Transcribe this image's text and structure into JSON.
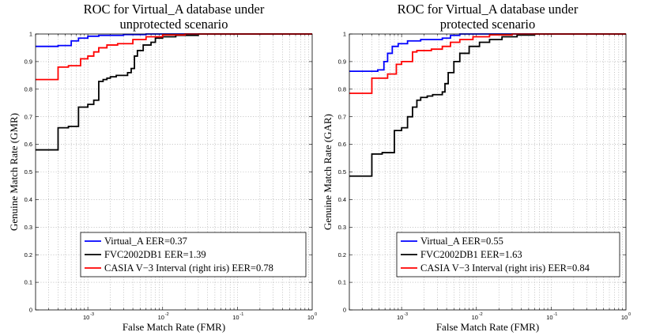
{
  "chart_data": [
    {
      "type": "line",
      "title": [
        "ROC for Virtual_A database under",
        "unprotected scenario"
      ],
      "xlabel": "False Match Rate (FMR)",
      "ylabel": "Genuine Match Rate (GMR)",
      "xscale": "log",
      "xlim": [
        0.0002,
        1
      ],
      "ylim": [
        0,
        1
      ],
      "grid": true,
      "legend_position": "lower-center",
      "xticks": [
        {
          "v": 0.001,
          "base": "10",
          "exp": "-3"
        },
        {
          "v": 0.01,
          "base": "10",
          "exp": "-2"
        },
        {
          "v": 0.1,
          "base": "10",
          "exp": "-1"
        },
        {
          "v": 1,
          "base": "10",
          "exp": "0"
        }
      ],
      "yticks": [
        {
          "v": 0,
          "label": "0"
        },
        {
          "v": 0.1,
          "label": "0.1"
        },
        {
          "v": 0.2,
          "label": "0.2"
        },
        {
          "v": 0.3,
          "label": "0.3"
        },
        {
          "v": 0.4,
          "label": "0.4"
        },
        {
          "v": 0.5,
          "label": "0.5"
        },
        {
          "v": 0.6,
          "label": "0.6"
        },
        {
          "v": 0.7,
          "label": "0.7"
        },
        {
          "v": 0.8,
          "label": "0.8"
        },
        {
          "v": 0.9,
          "label": "0.9"
        },
        {
          "v": 1,
          "label": "1"
        }
      ],
      "series": [
        {
          "name": "Virtual_A EER=0.37",
          "color": "#0000ff",
          "points": [
            [
              0.0002,
              0.955
            ],
            [
              0.0004,
              0.955
            ],
            [
              0.0004,
              0.958
            ],
            [
              0.0006,
              0.958
            ],
            [
              0.0006,
              0.975
            ],
            [
              0.00075,
              0.975
            ],
            [
              0.00075,
              0.985
            ],
            [
              0.001,
              0.985
            ],
            [
              0.001,
              0.992
            ],
            [
              0.0014,
              0.992
            ],
            [
              0.0014,
              0.995
            ],
            [
              0.003,
              0.995
            ],
            [
              0.003,
              0.998
            ],
            [
              0.006,
              0.998
            ],
            [
              0.006,
              1
            ],
            [
              1,
              1
            ]
          ]
        },
        {
          "name": "FVC2002DB1 EER=1.39",
          "color": "#000000",
          "points": [
            [
              0.0002,
              0.58
            ],
            [
              0.0004,
              0.58
            ],
            [
              0.0004,
              0.66
            ],
            [
              0.00055,
              0.66
            ],
            [
              0.00055,
              0.665
            ],
            [
              0.00075,
              0.665
            ],
            [
              0.00075,
              0.735
            ],
            [
              0.001,
              0.735
            ],
            [
              0.001,
              0.745
            ],
            [
              0.0012,
              0.745
            ],
            [
              0.0012,
              0.76
            ],
            [
              0.0014,
              0.76
            ],
            [
              0.0014,
              0.828
            ],
            [
              0.0016,
              0.828
            ],
            [
              0.0016,
              0.835
            ],
            [
              0.0018,
              0.835
            ],
            [
              0.0018,
              0.84
            ],
            [
              0.002,
              0.84
            ],
            [
              0.002,
              0.845
            ],
            [
              0.0024,
              0.845
            ],
            [
              0.0024,
              0.85
            ],
            [
              0.0034,
              0.85
            ],
            [
              0.0034,
              0.86
            ],
            [
              0.0038,
              0.86
            ],
            [
              0.0038,
              0.875
            ],
            [
              0.0042,
              0.875
            ],
            [
              0.0042,
              0.92
            ],
            [
              0.0046,
              0.92
            ],
            [
              0.0046,
              0.94
            ],
            [
              0.0055,
              0.94
            ],
            [
              0.0055,
              0.96
            ],
            [
              0.007,
              0.96
            ],
            [
              0.007,
              0.97
            ],
            [
              0.008,
              0.97
            ],
            [
              0.008,
              0.985
            ],
            [
              0.01,
              0.985
            ],
            [
              0.01,
              0.99
            ],
            [
              0.015,
              0.99
            ],
            [
              0.015,
              0.995
            ],
            [
              0.03,
              0.995
            ],
            [
              0.03,
              1
            ],
            [
              1,
              1
            ]
          ]
        },
        {
          "name": "CASIA V−3 Interval (right iris) EER=0.78",
          "color": "#ff0000",
          "points": [
            [
              0.0002,
              0.835
            ],
            [
              0.0004,
              0.835
            ],
            [
              0.0004,
              0.88
            ],
            [
              0.00055,
              0.88
            ],
            [
              0.00055,
              0.885
            ],
            [
              0.0008,
              0.885
            ],
            [
              0.0008,
              0.91
            ],
            [
              0.001,
              0.91
            ],
            [
              0.001,
              0.92
            ],
            [
              0.0012,
              0.92
            ],
            [
              0.0012,
              0.935
            ],
            [
              0.0014,
              0.935
            ],
            [
              0.0014,
              0.95
            ],
            [
              0.0018,
              0.95
            ],
            [
              0.0018,
              0.96
            ],
            [
              0.0025,
              0.96
            ],
            [
              0.0025,
              0.965
            ],
            [
              0.004,
              0.965
            ],
            [
              0.004,
              0.98
            ],
            [
              0.006,
              0.98
            ],
            [
              0.006,
              0.99
            ],
            [
              0.01,
              0.99
            ],
            [
              0.01,
              0.997
            ],
            [
              0.02,
              0.997
            ],
            [
              0.02,
              1
            ],
            [
              1,
              1
            ]
          ]
        }
      ]
    },
    {
      "type": "line",
      "title": [
        "ROC for Virtual_A database under",
        "protected scenario"
      ],
      "xlabel": "False Match Rate (FMR)",
      "ylabel": "Genuine Match Rate (GAR)",
      "xscale": "log",
      "xlim": [
        0.0002,
        1
      ],
      "ylim": [
        0,
        1
      ],
      "grid": true,
      "legend_position": "lower-center",
      "xticks": [
        {
          "v": 0.001,
          "base": "10",
          "exp": "-3"
        },
        {
          "v": 0.01,
          "base": "10",
          "exp": "-2"
        },
        {
          "v": 0.1,
          "base": "10",
          "exp": "-1"
        },
        {
          "v": 1,
          "base": "10",
          "exp": "0"
        }
      ],
      "yticks": [
        {
          "v": 0,
          "label": "0"
        },
        {
          "v": 0.1,
          "label": "0.1"
        },
        {
          "v": 0.2,
          "label": "0.2"
        },
        {
          "v": 0.3,
          "label": "0.3"
        },
        {
          "v": 0.4,
          "label": "0.4"
        },
        {
          "v": 0.5,
          "label": "0.5"
        },
        {
          "v": 0.6,
          "label": "0.6"
        },
        {
          "v": 0.7,
          "label": "0.7"
        },
        {
          "v": 0.8,
          "label": "0.8"
        },
        {
          "v": 0.9,
          "label": "0.9"
        },
        {
          "v": 1,
          "label": "1"
        }
      ],
      "series": [
        {
          "name": "Virtual_A EER=0.55",
          "color": "#0000ff",
          "points": [
            [
              0.0002,
              0.865
            ],
            [
              0.00048,
              0.865
            ],
            [
              0.00048,
              0.87
            ],
            [
              0.00058,
              0.87
            ],
            [
              0.00058,
              0.9
            ],
            [
              0.00065,
              0.9
            ],
            [
              0.00065,
              0.93
            ],
            [
              0.00075,
              0.93
            ],
            [
              0.00075,
              0.955
            ],
            [
              0.0009,
              0.955
            ],
            [
              0.0009,
              0.965
            ],
            [
              0.0012,
              0.965
            ],
            [
              0.0012,
              0.975
            ],
            [
              0.0018,
              0.975
            ],
            [
              0.0018,
              0.98
            ],
            [
              0.0035,
              0.98
            ],
            [
              0.0035,
              0.985
            ],
            [
              0.0045,
              0.985
            ],
            [
              0.0045,
              0.995
            ],
            [
              0.006,
              0.995
            ],
            [
              0.006,
              1
            ],
            [
              1,
              1
            ]
          ]
        },
        {
          "name": "FVC2002DB1 EER=1.63",
          "color": "#000000",
          "points": [
            [
              0.0002,
              0.485
            ],
            [
              0.0004,
              0.485
            ],
            [
              0.0004,
              0.565
            ],
            [
              0.00055,
              0.565
            ],
            [
              0.00055,
              0.57
            ],
            [
              0.0008,
              0.57
            ],
            [
              0.0008,
              0.65
            ],
            [
              0.001,
              0.65
            ],
            [
              0.001,
              0.66
            ],
            [
              0.0012,
              0.66
            ],
            [
              0.0012,
              0.7
            ],
            [
              0.0014,
              0.7
            ],
            [
              0.0014,
              0.735
            ],
            [
              0.0016,
              0.735
            ],
            [
              0.0016,
              0.76
            ],
            [
              0.0018,
              0.76
            ],
            [
              0.0018,
              0.77
            ],
            [
              0.0022,
              0.77
            ],
            [
              0.0022,
              0.775
            ],
            [
              0.0026,
              0.775
            ],
            [
              0.0026,
              0.78
            ],
            [
              0.0035,
              0.78
            ],
            [
              0.0035,
              0.79
            ],
            [
              0.0038,
              0.79
            ],
            [
              0.0038,
              0.82
            ],
            [
              0.0042,
              0.82
            ],
            [
              0.0042,
              0.86
            ],
            [
              0.005,
              0.86
            ],
            [
              0.005,
              0.9
            ],
            [
              0.006,
              0.9
            ],
            [
              0.006,
              0.93
            ],
            [
              0.008,
              0.93
            ],
            [
              0.008,
              0.955
            ],
            [
              0.011,
              0.955
            ],
            [
              0.011,
              0.97
            ],
            [
              0.015,
              0.97
            ],
            [
              0.015,
              0.98
            ],
            [
              0.022,
              0.98
            ],
            [
              0.022,
              0.99
            ],
            [
              0.035,
              0.99
            ],
            [
              0.035,
              0.996
            ],
            [
              0.06,
              0.996
            ],
            [
              0.06,
              1
            ],
            [
              1,
              1
            ]
          ]
        },
        {
          "name": "CASIA V−3 Interval (right iris) EER=0.84",
          "color": "#ff0000",
          "points": [
            [
              0.0002,
              0.785
            ],
            [
              0.0004,
              0.785
            ],
            [
              0.0004,
              0.84
            ],
            [
              0.00065,
              0.84
            ],
            [
              0.00065,
              0.855
            ],
            [
              0.00085,
              0.855
            ],
            [
              0.00085,
              0.89
            ],
            [
              0.001,
              0.89
            ],
            [
              0.001,
              0.9
            ],
            [
              0.0014,
              0.9
            ],
            [
              0.0014,
              0.935
            ],
            [
              0.0016,
              0.935
            ],
            [
              0.0016,
              0.94
            ],
            [
              0.0025,
              0.94
            ],
            [
              0.0025,
              0.945
            ],
            [
              0.0035,
              0.945
            ],
            [
              0.0035,
              0.955
            ],
            [
              0.0045,
              0.955
            ],
            [
              0.0045,
              0.97
            ],
            [
              0.006,
              0.97
            ],
            [
              0.006,
              0.98
            ],
            [
              0.009,
              0.98
            ],
            [
              0.009,
              0.99
            ],
            [
              0.015,
              0.99
            ],
            [
              0.015,
              0.997
            ],
            [
              0.03,
              0.997
            ],
            [
              0.03,
              1
            ],
            [
              1,
              1
            ]
          ]
        }
      ]
    }
  ]
}
